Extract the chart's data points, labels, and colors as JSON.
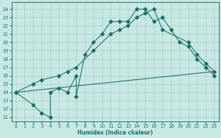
{
  "xlabel": "Humidex (Indice chaleur)",
  "xlim": [
    -0.5,
    23.5
  ],
  "ylim": [
    10.5,
    24.8
  ],
  "yticks": [
    11,
    12,
    13,
    14,
    15,
    16,
    17,
    18,
    19,
    20,
    21,
    22,
    23,
    24
  ],
  "xticks": [
    0,
    1,
    2,
    3,
    4,
    5,
    6,
    7,
    8,
    9,
    10,
    11,
    12,
    13,
    14,
    15,
    16,
    17,
    18,
    19,
    20,
    21,
    22,
    23
  ],
  "bg_color": "#c8e8e4",
  "grid_color": "#a8ccc8",
  "line_color": "#1e6e68",
  "curve1_x": [
    0,
    2,
    3,
    4,
    4,
    5,
    6,
    7,
    7,
    8,
    9,
    10,
    11,
    12,
    13,
    14,
    15,
    16,
    17,
    18,
    19,
    20,
    21,
    22,
    23
  ],
  "curve1_y": [
    14,
    12.5,
    11.5,
    11,
    14,
    14.5,
    14,
    16,
    13.5,
    18.5,
    20,
    21,
    22.5,
    22.5,
    22.5,
    24,
    24,
    22.5,
    23,
    21.5,
    20,
    19.5,
    18,
    17,
    16
  ],
  "curve2_x": [
    0,
    2,
    3,
    5,
    6,
    7,
    9,
    11,
    12,
    13,
    14,
    15,
    16,
    17,
    20,
    21,
    22,
    23
  ],
  "curve2_y": [
    14,
    15,
    15.5,
    16,
    16.5,
    17,
    19,
    21,
    21.5,
    22,
    23,
    23.5,
    24,
    21.5,
    20,
    18.5,
    17.5,
    16.5
  ],
  "curve3_x": [
    0,
    23
  ],
  "curve3_y": [
    14,
    16.5
  ],
  "marker_size": 2.5
}
